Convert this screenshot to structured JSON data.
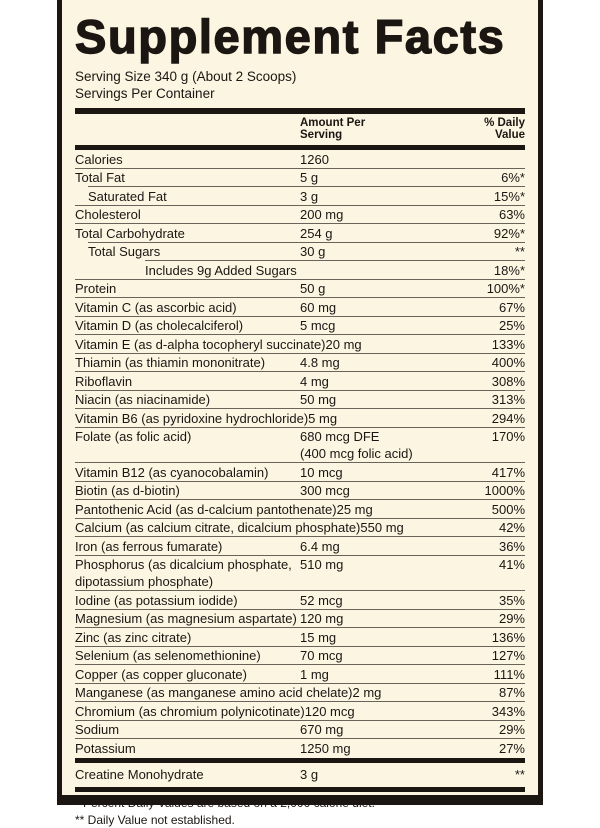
{
  "title": "Supplement Facts",
  "serving_size": "Serving Size 340 g (About 2 Scoops)",
  "servings_per_container": "Servings Per Container",
  "header": {
    "amount_line1": "Amount Per",
    "amount_line2": "Serving",
    "dv_line1": "% Daily",
    "dv_line2": "Value"
  },
  "rows": [
    {
      "name": "Calories",
      "amount": "1260",
      "dv": "",
      "indent": 0
    },
    {
      "name": "Total Fat",
      "amount": "5 g",
      "dv": "6%*",
      "indent": 0
    },
    {
      "name": "Saturated Fat",
      "amount": "3 g",
      "dv": "15%*",
      "indent": 1
    },
    {
      "name": "Cholesterol",
      "amount": "200 mg",
      "dv": "63%",
      "indent": 0
    },
    {
      "name": "Total Carbohydrate",
      "amount": "254 g",
      "dv": "92%*",
      "indent": 0
    },
    {
      "name": "Total Sugars",
      "amount": "30 g",
      "dv": "**",
      "indent": 1
    },
    {
      "name": "Includes 9g Added Sugars",
      "amount": "",
      "dv": "18%*",
      "indent": 2
    },
    {
      "name": "Protein",
      "amount": "50 g",
      "dv": "100%*",
      "indent": 0
    },
    {
      "name": "Vitamin C (as ascorbic acid)",
      "amount": "60 mg",
      "dv": "67%",
      "indent": 0
    },
    {
      "name": "Vitamin D (as cholecalciferol)",
      "amount": "5 mcg",
      "dv": "25%",
      "indent": 0
    },
    {
      "name": "Vitamin E (as d-alpha tocopheryl succinate)",
      "amount": "20 mg",
      "dv": "133%",
      "indent": 0
    },
    {
      "name": "Thiamin (as thiamin mononitrate)",
      "amount": "4.8 mg",
      "dv": "400%",
      "indent": 0
    },
    {
      "name": "Riboflavin",
      "amount": "4 mg",
      "dv": "308%",
      "indent": 0
    },
    {
      "name": "Niacin (as niacinamide)",
      "amount": "50 mg",
      "dv": "313%",
      "indent": 0
    },
    {
      "name": "Vitamin B6 (as pyridoxine hydrochloride)",
      "amount": "5 mg",
      "dv": "294%",
      "indent": 0
    },
    {
      "name": "Folate (as folic acid)",
      "amount": "680 mcg DFE",
      "amount2": "(400 mcg folic acid)",
      "dv": "170%",
      "indent": 0
    },
    {
      "name": "Vitamin B12 (as cyanocobalamin)",
      "amount": "10 mcg",
      "dv": "417%",
      "indent": 0
    },
    {
      "name": "Biotin (as d-biotin)",
      "amount": "300 mcg",
      "dv": "1000%",
      "indent": 0
    },
    {
      "name": "Pantothenic Acid (as d-calcium pantothenate)",
      "amount": "25 mg",
      "dv": "500%",
      "indent": 0
    },
    {
      "name": "Calcium (as calcium citrate, dicalcium phosphate)",
      "amount": "550 mg",
      "dv": "42%",
      "indent": 0
    },
    {
      "name": "Iron (as ferrous fumarate)",
      "amount": "6.4 mg",
      "dv": "36%",
      "indent": 0
    },
    {
      "name": "Phosphorus (as dicalcium phosphate,",
      "name2": "dipotassium phosphate)",
      "amount": "510 mg",
      "dv": "41%",
      "indent": 0
    },
    {
      "name": "Iodine (as potassium iodide)",
      "amount": "52 mcg",
      "dv": "35%",
      "indent": 0
    },
    {
      "name": "Magnesium (as magnesium aspartate)",
      "amount": "120 mg",
      "dv": "29%",
      "indent": 0
    },
    {
      "name": "Zinc (as zinc citrate)",
      "amount": "15 mg",
      "dv": "136%",
      "indent": 0
    },
    {
      "name": "Selenium (as selenomethionine)",
      "amount": "70 mcg",
      "dv": "127%",
      "indent": 0
    },
    {
      "name": "Copper (as copper gluconate)",
      "amount": "1 mg",
      "dv": "111%",
      "indent": 0
    },
    {
      "name": "Manganese (as manganese amino acid chelate)",
      "amount": "2 mg",
      "dv": "87%",
      "indent": 0
    },
    {
      "name": "Chromium (as chromium polynicotinate)",
      "amount": "120 mcg",
      "dv": "343%",
      "indent": 0
    },
    {
      "name": "Sodium",
      "amount": "670 mg",
      "dv": "29%",
      "indent": 0
    },
    {
      "name": "Potassium",
      "amount": "1250 mg",
      "dv": "27%",
      "indent": 0
    }
  ],
  "extra_row": {
    "name": "Creatine Monohydrate",
    "amount": "3 g",
    "dv": "**"
  },
  "footnotes": [
    "* Percent Daily Values are based on a 2,000 calorie diet.",
    "** Daily Value not established."
  ],
  "colors": {
    "background": "#fbf5e2",
    "ink": "#1c1613"
  }
}
